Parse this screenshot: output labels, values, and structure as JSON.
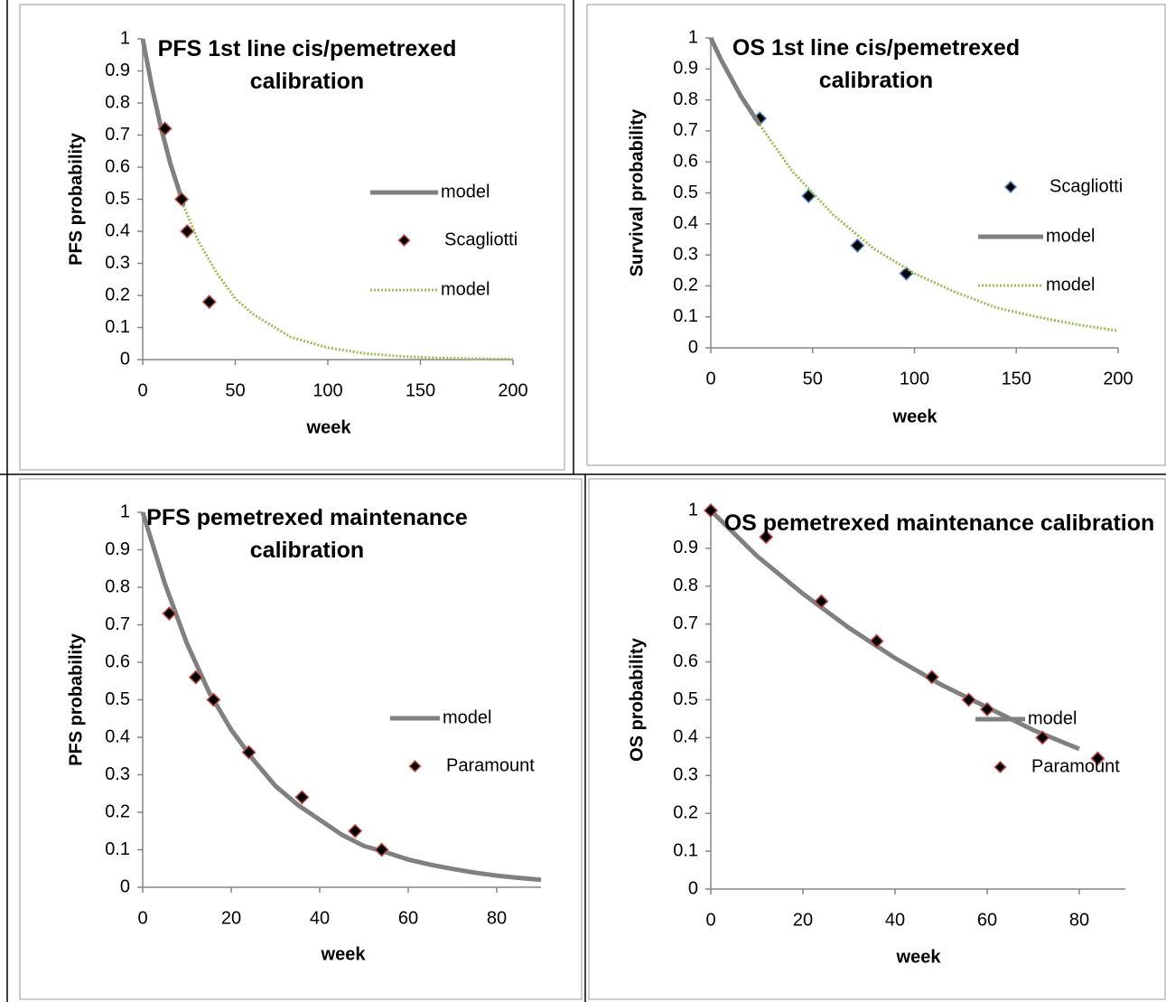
{
  "chart_data": [
    {
      "type": "line",
      "title": "PFS 1st line cis/pemetrexed calibration",
      "x_label": "week",
      "y_label": "PFS probability",
      "xlim": [
        0,
        200
      ],
      "xticks": [
        0,
        50,
        100,
        150,
        200
      ],
      "ylim": [
        0,
        1
      ],
      "yticks": [
        0,
        0.1,
        0.2,
        0.3,
        0.4,
        0.5,
        0.6,
        0.7,
        0.8,
        0.9,
        1
      ],
      "grid": false,
      "legend": "right",
      "series": [
        {
          "name": "model",
          "kind": "line",
          "color": "#808080",
          "dash": false,
          "x": [
            0,
            5,
            10,
            15,
            20,
            22
          ],
          "values": [
            1,
            0.85,
            0.72,
            0.61,
            0.52,
            0.48
          ]
        },
        {
          "name": "Scagliotti",
          "kind": "scatter",
          "color": "#000000",
          "edgecolor": "#c0504d",
          "x": [
            12,
            21,
            24,
            36
          ],
          "values": [
            0.72,
            0.5,
            0.4,
            0.18
          ]
        },
        {
          "name": "model",
          "kind": "line",
          "color": "#9bbb59",
          "dash": true,
          "x": [
            22,
            30,
            40,
            50,
            60,
            80,
            100,
            120,
            140,
            160,
            180,
            200
          ],
          "values": [
            0.48,
            0.37,
            0.27,
            0.19,
            0.14,
            0.07,
            0.037,
            0.019,
            0.01,
            0.005,
            0.003,
            0.001
          ]
        }
      ]
    },
    {
      "type": "line",
      "title": "OS 1st line cis/pemetrexed calibration",
      "x_label": "week",
      "y_label": "Survival probability",
      "xlim": [
        0,
        200
      ],
      "xticks": [
        0,
        50,
        100,
        150,
        200
      ],
      "ylim": [
        0,
        1
      ],
      "yticks": [
        0,
        0.1,
        0.2,
        0.3,
        0.4,
        0.5,
        0.6,
        0.7,
        0.8,
        0.9,
        1
      ],
      "grid": false,
      "legend": "right",
      "series": [
        {
          "name": "Scagliotti",
          "kind": "scatter",
          "color": "#000000",
          "edgecolor": "#4f81bd",
          "x": [
            24,
            48,
            72,
            96
          ],
          "values": [
            0.74,
            0.49,
            0.33,
            0.24
          ]
        },
        {
          "name": "model",
          "kind": "line",
          "color": "#808080",
          "dash": false,
          "x": [
            0,
            5,
            10,
            15,
            20,
            24
          ],
          "values": [
            1,
            0.93,
            0.87,
            0.81,
            0.76,
            0.72
          ]
        },
        {
          "name": "model",
          "kind": "line",
          "color": "#9bbb59",
          "dash": true,
          "x": [
            24,
            40,
            60,
            80,
            100,
            120,
            140,
            160,
            180,
            200
          ],
          "values": [
            0.72,
            0.57,
            0.43,
            0.32,
            0.24,
            0.18,
            0.13,
            0.1,
            0.075,
            0.055
          ]
        }
      ]
    },
    {
      "type": "line",
      "title": "PFS pemetrexed maintenance calibration",
      "x_label": "week",
      "y_label": "PFS probability",
      "xlim": [
        0,
        90
      ],
      "xticks": [
        0,
        20,
        40,
        60,
        80
      ],
      "ylim": [
        0,
        1
      ],
      "yticks": [
        0,
        0.1,
        0.2,
        0.3,
        0.4,
        0.5,
        0.6,
        0.7,
        0.8,
        0.9,
        1
      ],
      "grid": false,
      "legend": "right",
      "series": [
        {
          "name": "model",
          "kind": "line",
          "color": "#808080",
          "dash": false,
          "x": [
            0,
            5,
            10,
            15,
            20,
            25,
            30,
            35,
            40,
            45,
            50,
            55,
            60,
            65,
            70,
            75,
            80,
            85,
            90
          ],
          "values": [
            1,
            0.81,
            0.65,
            0.52,
            0.42,
            0.34,
            0.27,
            0.22,
            0.18,
            0.14,
            0.11,
            0.093,
            0.074,
            0.06,
            0.049,
            0.039,
            0.031,
            0.025,
            0.02
          ]
        },
        {
          "name": "Paramount",
          "kind": "scatter",
          "color": "#000000",
          "edgecolor": "#c0504d",
          "x": [
            6,
            12,
            16,
            24,
            36,
            48,
            54
          ],
          "values": [
            0.73,
            0.56,
            0.5,
            0.36,
            0.24,
            0.15,
            0.1
          ]
        }
      ]
    },
    {
      "type": "line",
      "title": "OS pemetrexed maintenance calibration",
      "x_label": "week",
      "y_label": "OS probability",
      "xlim": [
        0,
        90
      ],
      "xticks": [
        0,
        20,
        40,
        60,
        80
      ],
      "ylim": [
        0,
        1
      ],
      "yticks": [
        0,
        0.1,
        0.2,
        0.3,
        0.4,
        0.5,
        0.6,
        0.7,
        0.8,
        0.9,
        1
      ],
      "grid": false,
      "legend": "right",
      "series": [
        {
          "name": "model",
          "kind": "line",
          "color": "#808080",
          "dash": false,
          "x": [
            0,
            10,
            20,
            30,
            40,
            50,
            60,
            70,
            80
          ],
          "values": [
            1,
            0.88,
            0.78,
            0.69,
            0.61,
            0.54,
            0.48,
            0.42,
            0.37
          ]
        },
        {
          "name": "Paramount",
          "kind": "scatter",
          "color": "#000000",
          "edgecolor": "#c0504d",
          "x": [
            0,
            12,
            24,
            36,
            48,
            56,
            60,
            72,
            84
          ],
          "values": [
            1,
            0.93,
            0.76,
            0.655,
            0.56,
            0.5,
            0.475,
            0.4,
            0.345
          ]
        }
      ]
    }
  ]
}
